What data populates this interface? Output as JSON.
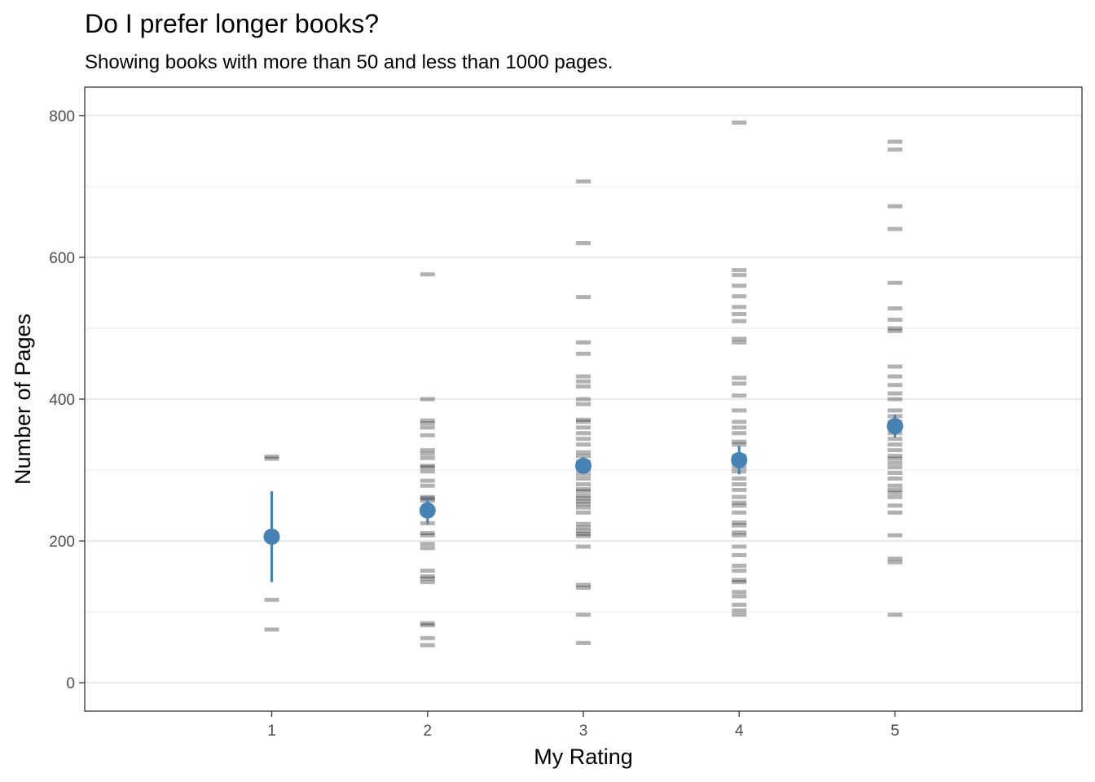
{
  "chart_data": {
    "type": "scatter",
    "title": "Do I prefer longer books?",
    "subtitle": "Showing books with more than 50 and less than 1000 pages.",
    "xlabel": "My Rating",
    "ylabel": "Number of Pages",
    "x_ticks": [
      "1",
      "2",
      "3",
      "4",
      "5"
    ],
    "y_ticks": [
      "0",
      "200",
      "400",
      "600",
      "800"
    ],
    "xlim": [
      -0.2,
      6.2
    ],
    "ylim": [
      -40,
      840
    ],
    "grid": true,
    "points_color": "#000000",
    "summary_color": "#4682b4",
    "ratings": [
      {
        "rating": 1,
        "mean": 206,
        "ci_low": 142,
        "ci_high": 270,
        "pages": [
          75,
          117,
          316,
          319
        ]
      },
      {
        "rating": 2,
        "mean": 243,
        "ci_low": 224,
        "ci_high": 262,
        "pages": [
          53,
          63,
          81,
          84,
          142,
          147,
          150,
          158,
          190,
          196,
          208,
          211,
          225,
          240,
          245,
          257,
          260,
          262,
          278,
          285,
          298,
          304,
          306,
          317,
          323,
          328,
          349,
          360,
          366,
          370,
          400,
          576
        ]
      },
      {
        "rating": 3,
        "mean": 306,
        "ci_low": 295,
        "ci_high": 318,
        "pages": [
          56,
          96,
          134,
          138,
          192,
          207,
          210,
          214,
          219,
          224,
          240,
          247,
          252,
          256,
          260,
          264,
          270,
          273,
          280,
          288,
          294,
          300,
          306,
          312,
          320,
          325,
          336,
          344,
          352,
          360,
          368,
          371,
          393,
          400,
          418,
          425,
          432,
          464,
          480,
          544,
          620,
          707
        ]
      },
      {
        "rating": 4,
        "mean": 314,
        "ci_low": 294,
        "ci_high": 334,
        "pages": [
          96,
          102,
          110,
          122,
          128,
          142,
          145,
          158,
          165,
          180,
          192,
          208,
          212,
          222,
          226,
          240,
          250,
          254,
          262,
          272,
          280,
          288,
          298,
          304,
          310,
          320,
          336,
          340,
          352,
          360,
          368,
          384,
          405,
          422,
          430,
          480,
          485,
          510,
          520,
          530,
          545,
          560,
          575,
          582,
          790
        ]
      },
      {
        "rating": 5,
        "mean": 362,
        "ci_low": 346,
        "ci_high": 378,
        "pages": [
          96,
          170,
          175,
          208,
          240,
          250,
          262,
          268,
          272,
          278,
          288,
          296,
          304,
          310,
          316,
          320,
          328,
          336,
          344,
          352,
          360,
          368,
          376,
          384,
          400,
          408,
          420,
          432,
          446,
          496,
          500,
          512,
          528,
          564,
          640,
          672,
          752,
          763
        ]
      }
    ]
  }
}
